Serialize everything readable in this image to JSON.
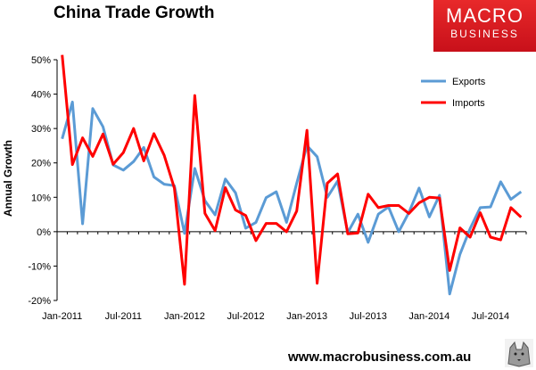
{
  "header": {
    "title": "China Trade Growth"
  },
  "logo": {
    "line1": "MACRO",
    "line2": "BUSINESS"
  },
  "footer": {
    "url": "www.macrobusiness.com.au"
  },
  "colors": {
    "exports": "#5b9bd5",
    "imports": "#ff0000",
    "brand": "#d7141e"
  },
  "icons": {
    "wolf": "wolf-logo-icon"
  },
  "chart_data": {
    "type": "line",
    "ylabel": "Annual Growth",
    "ylim": [
      -20,
      50
    ],
    "yticks": [
      -20,
      -10,
      0,
      10,
      20,
      30,
      40,
      50
    ],
    "ytick_labels": [
      "-20%",
      "-10%",
      "0%",
      "10%",
      "20%",
      "30%",
      "40%",
      "50%"
    ],
    "xtick_labels": [
      "Jan-2011",
      "Jul-2011",
      "Jan-2012",
      "Jul-2012",
      "Jan-2013",
      "Jul-2013",
      "Jan-2014",
      "Jul-2014"
    ],
    "xtick_indices": [
      0,
      6,
      12,
      18,
      24,
      30,
      36,
      42
    ],
    "legend_position": "top-right",
    "grid": false,
    "x": [
      "Jan-2011",
      "Feb-2011",
      "Mar-2011",
      "Apr-2011",
      "May-2011",
      "Jun-2011",
      "Jul-2011",
      "Aug-2011",
      "Sep-2011",
      "Oct-2011",
      "Nov-2011",
      "Dec-2011",
      "Jan-2012",
      "Feb-2012",
      "Mar-2012",
      "Apr-2012",
      "May-2012",
      "Jun-2012",
      "Jul-2012",
      "Aug-2012",
      "Sep-2012",
      "Oct-2012",
      "Nov-2012",
      "Dec-2012",
      "Jan-2013",
      "Feb-2013",
      "Mar-2013",
      "Apr-2013",
      "May-2013",
      "Jun-2013",
      "Jul-2013",
      "Aug-2013",
      "Sep-2013",
      "Oct-2013",
      "Nov-2013",
      "Dec-2013",
      "Jan-2014",
      "Feb-2014",
      "Mar-2014",
      "Apr-2014",
      "May-2014",
      "Jun-2014",
      "Jul-2014",
      "Aug-2014",
      "Sep-2014",
      "Oct-2014"
    ],
    "series": [
      {
        "name": "Exports",
        "color": "#5b9bd5",
        "values": [
          27,
          37.7,
          2.3,
          35.8,
          30.5,
          19.4,
          17.9,
          20.4,
          24.5,
          15.9,
          13.8,
          13.4,
          -0.5,
          18.4,
          9.0,
          4.9,
          15.3,
          11.3,
          1.0,
          2.7,
          9.9,
          11.6,
          2.7,
          14.1,
          25.0,
          21.8,
          10.0,
          14.7,
          -0.3,
          5.1,
          -3.1,
          5.1,
          7.2,
          0.0,
          5.6,
          12.7,
          4.3,
          10.6,
          -18.1,
          -6.6,
          0.9,
          7.0,
          7.2,
          14.5,
          9.4,
          11.6
        ]
      },
      {
        "name": "Imports",
        "color": "#ff0000",
        "values": [
          51.4,
          19.5,
          27.3,
          21.9,
          28.4,
          19.6,
          23.0,
          30.0,
          20.6,
          28.5,
          22.2,
          12.7,
          -15.3,
          39.6,
          5.3,
          0.3,
          12.8,
          6.3,
          4.7,
          -2.6,
          2.4,
          2.4,
          0.0,
          6.0,
          29.5,
          -15.0,
          14.1,
          16.8,
          -0.6,
          -0.4,
          10.9,
          7.0,
          7.6,
          7.6,
          5.3,
          8.4,
          10.0,
          9.8,
          -11.3,
          1.1,
          -1.6,
          5.5,
          -1.6,
          -2.4,
          7.0,
          4.2
        ]
      }
    ]
  }
}
